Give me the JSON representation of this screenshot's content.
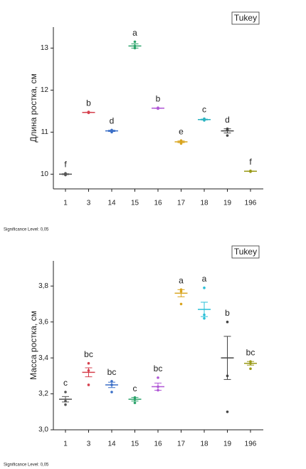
{
  "chart_data": [
    {
      "type": "dot",
      "tag": "Tukey",
      "note": "Significance Level: 0,05",
      "ylabel": "Длина ростка, см",
      "categories": [
        "1",
        "3",
        "14",
        "15",
        "16",
        "17",
        "18",
        "19",
        "196"
      ],
      "colors": [
        "#555555",
        "#d6404e",
        "#3b6fc7",
        "#2aa36a",
        "#b057d6",
        "#d9a520",
        "#2bb3c0",
        "#444444",
        "#9a9a18"
      ],
      "means": [
        10.0,
        11.47,
        11.03,
        13.05,
        11.57,
        10.77,
        11.3,
        11.03,
        10.07
      ],
      "errors": [
        0.01,
        0.005,
        0.015,
        0.05,
        0.005,
        0.02,
        0.01,
        0.05,
        0.005
      ],
      "points": [
        [
          9.98,
          10.0,
          10.02
        ],
        [
          11.46,
          11.47,
          11.48
        ],
        [
          11.0,
          11.03,
          11.05
        ],
        [
          13.0,
          13.05,
          13.15
        ],
        [
          11.56,
          11.57,
          11.58
        ],
        [
          10.73,
          10.77,
          10.8
        ],
        [
          11.28,
          11.3,
          11.32
        ],
        [
          10.92,
          11.05,
          11.08
        ],
        [
          10.06,
          10.07,
          10.08
        ]
      ],
      "letters": [
        "f",
        "b",
        "d",
        "a",
        "b",
        "e",
        "c",
        "d",
        "f"
      ],
      "ylim": [
        9.65,
        13.5
      ],
      "yticks": [
        10,
        11,
        12,
        13
      ]
    },
    {
      "type": "dot",
      "tag": "Tukey",
      "note": "Significance Level: 0,05",
      "ylabel": "Масса ростка, см",
      "categories": [
        "1",
        "3",
        "14",
        "15",
        "16",
        "17",
        "18",
        "19",
        "196"
      ],
      "colors": [
        "#555555",
        "#d6404e",
        "#3b6fc7",
        "#2aa36a",
        "#b057d6",
        "#d9a520",
        "#2bc0d8",
        "#444444",
        "#9a9a18"
      ],
      "means": [
        3.17,
        3.32,
        3.25,
        3.17,
        3.24,
        3.76,
        3.67,
        3.4,
        3.37
      ],
      "errors": [
        0.015,
        0.025,
        0.015,
        0.01,
        0.02,
        0.02,
        0.04,
        0.12,
        0.01
      ],
      "points": [
        [
          3.14,
          3.16,
          3.21
        ],
        [
          3.25,
          3.33,
          3.37
        ],
        [
          3.21,
          3.25,
          3.27
        ],
        [
          3.15,
          3.17,
          3.18
        ],
        [
          3.22,
          3.24,
          3.29
        ],
        [
          3.7,
          3.77,
          3.78
        ],
        [
          3.62,
          3.64,
          3.79
        ],
        [
          3.1,
          3.3,
          3.6
        ],
        [
          3.34,
          3.37,
          3.38
        ]
      ],
      "letters": [
        "c",
        "bc",
        "bc",
        "c",
        "bc",
        "a",
        "a",
        "b",
        "bc"
      ],
      "ylim": [
        3.0,
        3.94
      ],
      "yticks": [
        {
          "value": 3.0,
          "label": "3,0"
        },
        {
          "value": 3.2,
          "label": "3,2"
        },
        {
          "value": 3.4,
          "label": "3,4"
        },
        {
          "value": 3.6,
          "label": "3,6"
        },
        {
          "value": 3.8,
          "label": "3,8"
        }
      ]
    }
  ]
}
